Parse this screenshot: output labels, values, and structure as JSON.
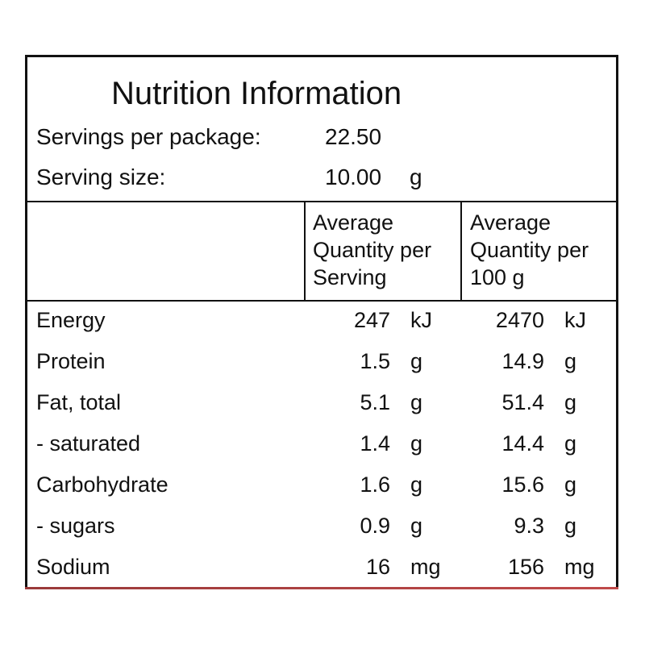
{
  "title": "Nutrition Information",
  "servings_per_package": {
    "label": "Servings per package:",
    "value": "22.50"
  },
  "serving_size": {
    "label": "Serving size:",
    "value": "10.00",
    "unit": "g"
  },
  "columns": {
    "per_serving": [
      "Average",
      "Quantity per",
      "Serving"
    ],
    "per_100g": [
      "Average",
      "Quantity per",
      "100 g"
    ]
  },
  "rows": [
    {
      "name": "Energy",
      "serving": "247",
      "serving_unit": "kJ",
      "per100": "2470",
      "per100_unit": "kJ"
    },
    {
      "name": "Protein",
      "serving": "1.5",
      "serving_unit": "g",
      "per100": "14.9",
      "per100_unit": "g"
    },
    {
      "name": "Fat, total",
      "serving": "5.1",
      "serving_unit": "g",
      "per100": "51.4",
      "per100_unit": "g"
    },
    {
      "name": "- saturated",
      "serving": "1.4",
      "serving_unit": "g",
      "per100": "14.4",
      "per100_unit": "g"
    },
    {
      "name": "Carbohydrate",
      "serving": "1.6",
      "serving_unit": "g",
      "per100": "15.6",
      "per100_unit": "g"
    },
    {
      "name": "- sugars",
      "serving": "0.9",
      "serving_unit": "g",
      "per100": "9.3",
      "per100_unit": "g"
    },
    {
      "name": "Sodium",
      "serving": "16",
      "serving_unit": "mg",
      "per100": "156",
      "per100_unit": "mg"
    }
  ]
}
